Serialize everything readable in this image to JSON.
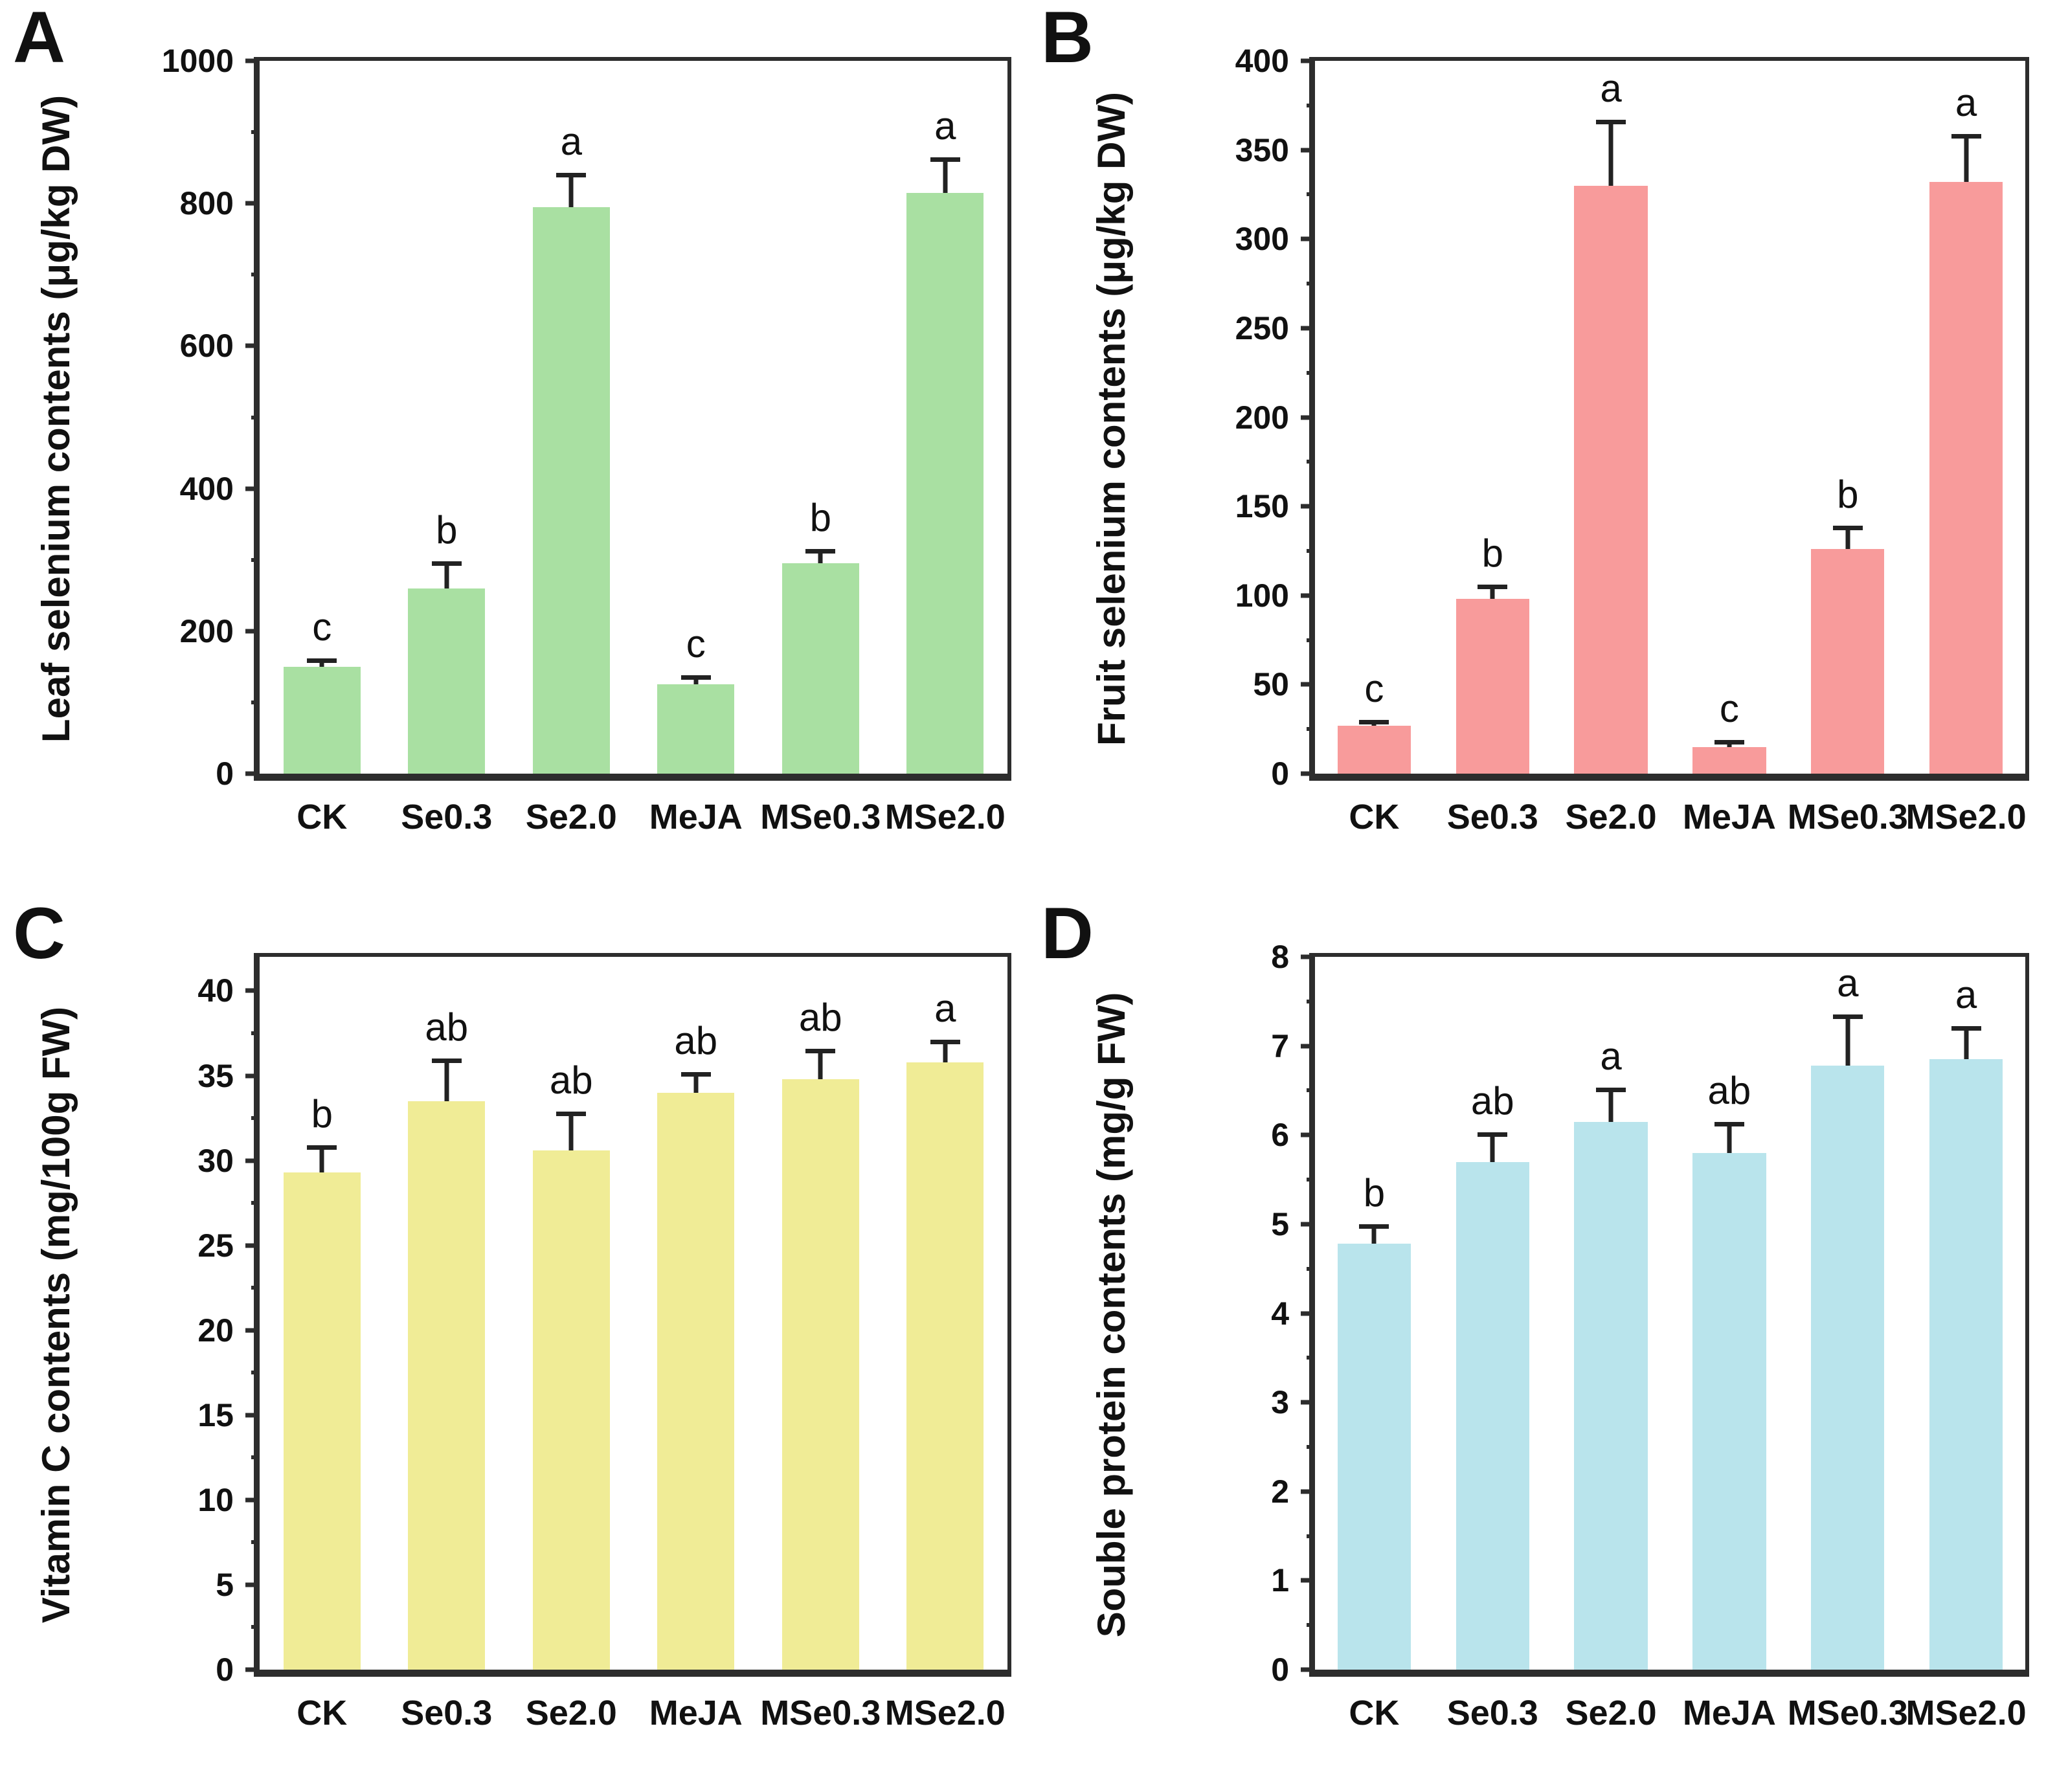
{
  "chart_data": [
    {
      "type": "bar",
      "panel_label": "A",
      "title": "",
      "xlabel": "",
      "ylabel": "Leaf selenium contents (μg/kg DW)",
      "ylim": [
        0,
        1000
      ],
      "ytick_step": 200,
      "yminor_step": 100,
      "grid": false,
      "legend": "none",
      "bar_color": "#a9e0a2",
      "categories": [
        "CK",
        "Se0.3",
        "Se2.0",
        "MeJA",
        "MSe0.3",
        "MSe2.0"
      ],
      "values": [
        150,
        260,
        795,
        125,
        295,
        815
      ],
      "errors": [
        12,
        38,
        48,
        13,
        20,
        50
      ],
      "sig_letters": [
        "c",
        "b",
        "a",
        "c",
        "b",
        "a"
      ]
    },
    {
      "type": "bar",
      "panel_label": "B",
      "title": "",
      "xlabel": "",
      "ylabel": "Fruit selenium contents (μg/kg DW)",
      "ylim": [
        0,
        400
      ],
      "ytick_step": 50,
      "yminor_step": 25,
      "grid": false,
      "legend": "none",
      "bar_color": "#f89b9b",
      "categories": [
        "CK",
        "Se0.3",
        "Se2.0",
        "MeJA",
        "MSe0.3",
        "MSe2.0"
      ],
      "values": [
        27,
        98,
        330,
        15,
        126,
        332
      ],
      "errors": [
        3,
        8,
        37,
        4,
        13,
        27
      ],
      "sig_letters": [
        "c",
        "b",
        "a",
        "c",
        "b",
        "a"
      ]
    },
    {
      "type": "bar",
      "panel_label": "C",
      "title": "",
      "xlabel": "",
      "ylabel": "Vitamin C contents (mg/100g FW)",
      "ylim": [
        0,
        42
      ],
      "ytick_step": 5,
      "yminor_step": 2.5,
      "ytick_max_label": 40,
      "grid": false,
      "legend": "none",
      "bar_color": "#f0ec96",
      "categories": [
        "CK",
        "Se0.3",
        "Se2.0",
        "MeJA",
        "MSe0.3",
        "MSe2.0"
      ],
      "values": [
        29.3,
        33.5,
        30.6,
        34.0,
        34.8,
        35.8
      ],
      "errors": [
        1.6,
        2.5,
        2.3,
        1.2,
        1.8,
        1.3
      ],
      "sig_letters": [
        "b",
        "ab",
        "ab",
        "ab",
        "ab",
        "a"
      ]
    },
    {
      "type": "bar",
      "panel_label": "D",
      "title": "",
      "xlabel": "",
      "ylabel": "Souble protein contents (mg/g FW)",
      "ylim": [
        0,
        8
      ],
      "ytick_step": 1,
      "yminor_step": 0.5,
      "grid": false,
      "legend": "none",
      "bar_color": "#b9e4ec",
      "categories": [
        "CK",
        "Se0.3",
        "Se2.0",
        "MeJA",
        "MSe0.3",
        "MSe2.0"
      ],
      "values": [
        4.78,
        5.7,
        6.15,
        5.8,
        6.78,
        6.85
      ],
      "errors": [
        0.22,
        0.33,
        0.38,
        0.35,
        0.57,
        0.37
      ],
      "sig_letters": [
        "b",
        "ab",
        "a",
        "ab",
        "a",
        "a"
      ]
    }
  ]
}
